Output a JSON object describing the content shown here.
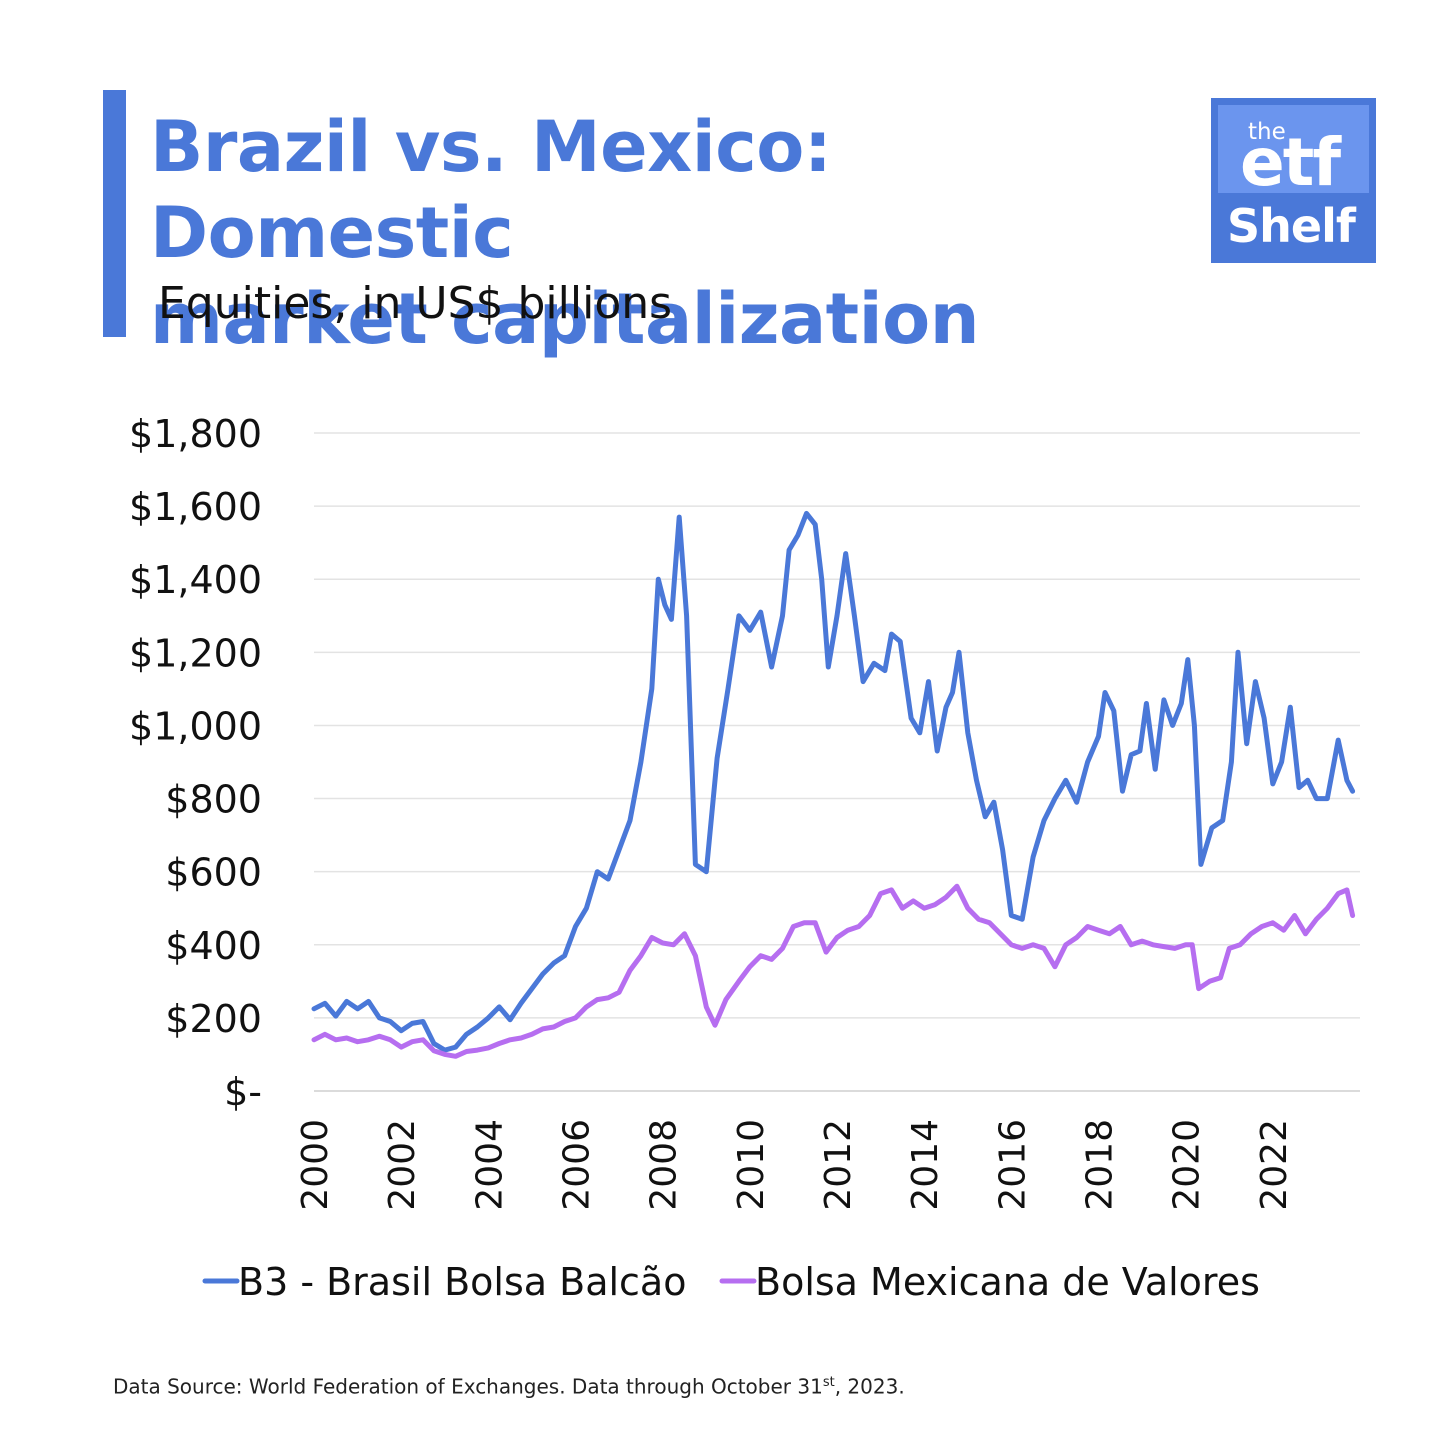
{
  "header": {
    "title_line1": "Brazil vs. Mexico: Domestic",
    "title_line2": "market capitalization",
    "subtitle": "Equities, in US$ billions"
  },
  "logo": {
    "the": "the",
    "etf": "etf",
    "shelf": "Shelf"
  },
  "footer": {
    "source_text": "Data Source: World Federation of Exchanges. Data through October 31",
    "superscript": "st",
    "source_end": ", 2023."
  },
  "colors": {
    "brand": "#4a78d8",
    "brazil": "#4a78d8",
    "mexico": "#b66ef0",
    "grid": "#e3e3e3"
  },
  "chart_data": {
    "type": "line",
    "title": "Brazil vs. Mexico: Domestic market capitalization",
    "subtitle": "Equities, in US$ billions",
    "xlim": [
      2000,
      2024
    ],
    "ylim": [
      0,
      1800
    ],
    "y_ticks": [
      0,
      200,
      400,
      600,
      800,
      1000,
      1200,
      1400,
      1600,
      1800
    ],
    "y_tick_labels": [
      "$-",
      "$200",
      "$400",
      "$600",
      "$800",
      "$1,000",
      "$1,200",
      "$1,400",
      "$1,600",
      "$1,800"
    ],
    "x_ticks": [
      2000,
      2002,
      2004,
      2006,
      2008,
      2010,
      2012,
      2014,
      2016,
      2018,
      2020,
      2022
    ],
    "x_tick_labels": [
      "2000",
      "2002",
      "2004",
      "2006",
      "2008",
      "2010",
      "2012",
      "2014",
      "2016",
      "2018",
      "2020",
      "2022"
    ],
    "grid": true,
    "legend_position": "bottom",
    "series": [
      {
        "name": "B3 - Brasil Bolsa Balcão",
        "color": "#4a78d8",
        "points": [
          [
            2000.0,
            225
          ],
          [
            2000.25,
            240
          ],
          [
            2000.5,
            205
          ],
          [
            2000.75,
            245
          ],
          [
            2001.0,
            225
          ],
          [
            2001.25,
            245
          ],
          [
            2001.5,
            200
          ],
          [
            2001.75,
            190
          ],
          [
            2002.0,
            165
          ],
          [
            2002.25,
            185
          ],
          [
            2002.5,
            190
          ],
          [
            2002.75,
            130
          ],
          [
            2003.0,
            112
          ],
          [
            2003.25,
            120
          ],
          [
            2003.5,
            155
          ],
          [
            2003.75,
            175
          ],
          [
            2004.0,
            200
          ],
          [
            2004.25,
            230
          ],
          [
            2004.5,
            195
          ],
          [
            2004.75,
            240
          ],
          [
            2005.0,
            280
          ],
          [
            2005.25,
            320
          ],
          [
            2005.5,
            350
          ],
          [
            2005.75,
            370
          ],
          [
            2006.0,
            450
          ],
          [
            2006.25,
            500
          ],
          [
            2006.5,
            600
          ],
          [
            2006.75,
            580
          ],
          [
            2007.0,
            660
          ],
          [
            2007.25,
            740
          ],
          [
            2007.5,
            900
          ],
          [
            2007.75,
            1100
          ],
          [
            2007.9,
            1400
          ],
          [
            2008.05,
            1330
          ],
          [
            2008.2,
            1290
          ],
          [
            2008.38,
            1570
          ],
          [
            2008.55,
            1300
          ],
          [
            2008.75,
            620
          ],
          [
            2009.0,
            600
          ],
          [
            2009.25,
            910
          ],
          [
            2009.5,
            1100
          ],
          [
            2009.75,
            1300
          ],
          [
            2010.0,
            1260
          ],
          [
            2010.25,
            1310
          ],
          [
            2010.5,
            1160
          ],
          [
            2010.75,
            1300
          ],
          [
            2010.9,
            1480
          ],
          [
            2011.1,
            1520
          ],
          [
            2011.3,
            1580
          ],
          [
            2011.5,
            1550
          ],
          [
            2011.65,
            1400
          ],
          [
            2011.8,
            1160
          ],
          [
            2012.0,
            1300
          ],
          [
            2012.2,
            1470
          ],
          [
            2012.4,
            1300
          ],
          [
            2012.6,
            1120
          ],
          [
            2012.85,
            1170
          ],
          [
            2013.1,
            1150
          ],
          [
            2013.25,
            1250
          ],
          [
            2013.45,
            1230
          ],
          [
            2013.7,
            1020
          ],
          [
            2013.9,
            980
          ],
          [
            2014.1,
            1120
          ],
          [
            2014.3,
            930
          ],
          [
            2014.5,
            1050
          ],
          [
            2014.65,
            1090
          ],
          [
            2014.8,
            1200
          ],
          [
            2015.0,
            980
          ],
          [
            2015.2,
            850
          ],
          [
            2015.4,
            750
          ],
          [
            2015.6,
            790
          ],
          [
            2015.8,
            660
          ],
          [
            2016.0,
            480
          ],
          [
            2016.25,
            470
          ],
          [
            2016.5,
            640
          ],
          [
            2016.75,
            740
          ],
          [
            2017.0,
            800
          ],
          [
            2017.25,
            850
          ],
          [
            2017.5,
            790
          ],
          [
            2017.75,
            900
          ],
          [
            2018.0,
            970
          ],
          [
            2018.15,
            1090
          ],
          [
            2018.35,
            1040
          ],
          [
            2018.55,
            820
          ],
          [
            2018.75,
            920
          ],
          [
            2018.95,
            930
          ],
          [
            2019.1,
            1060
          ],
          [
            2019.3,
            880
          ],
          [
            2019.5,
            1070
          ],
          [
            2019.7,
            1000
          ],
          [
            2019.9,
            1060
          ],
          [
            2020.05,
            1180
          ],
          [
            2020.2,
            1000
          ],
          [
            2020.35,
            620
          ],
          [
            2020.6,
            720
          ],
          [
            2020.85,
            740
          ],
          [
            2021.05,
            900
          ],
          [
            2021.2,
            1200
          ],
          [
            2021.4,
            950
          ],
          [
            2021.6,
            1120
          ],
          [
            2021.8,
            1020
          ],
          [
            2022.0,
            840
          ],
          [
            2022.2,
            900
          ],
          [
            2022.4,
            1050
          ],
          [
            2022.6,
            830
          ],
          [
            2022.8,
            850
          ],
          [
            2023.0,
            800
          ],
          [
            2023.25,
            800
          ],
          [
            2023.5,
            960
          ],
          [
            2023.7,
            850
          ],
          [
            2023.83,
            820
          ]
        ]
      },
      {
        "name": "Bolsa Mexicana de Valores",
        "color": "#b66ef0",
        "points": [
          [
            2000.0,
            140
          ],
          [
            2000.25,
            155
          ],
          [
            2000.5,
            140
          ],
          [
            2000.75,
            145
          ],
          [
            2001.0,
            135
          ],
          [
            2001.25,
            140
          ],
          [
            2001.5,
            150
          ],
          [
            2001.75,
            140
          ],
          [
            2002.0,
            120
          ],
          [
            2002.25,
            135
          ],
          [
            2002.5,
            140
          ],
          [
            2002.75,
            110
          ],
          [
            2003.0,
            100
          ],
          [
            2003.25,
            95
          ],
          [
            2003.5,
            108
          ],
          [
            2003.75,
            112
          ],
          [
            2004.0,
            118
          ],
          [
            2004.25,
            130
          ],
          [
            2004.5,
            140
          ],
          [
            2004.75,
            145
          ],
          [
            2005.0,
            155
          ],
          [
            2005.25,
            170
          ],
          [
            2005.5,
            175
          ],
          [
            2005.75,
            190
          ],
          [
            2006.0,
            200
          ],
          [
            2006.25,
            230
          ],
          [
            2006.5,
            250
          ],
          [
            2006.75,
            255
          ],
          [
            2007.0,
            270
          ],
          [
            2007.25,
            330
          ],
          [
            2007.5,
            370
          ],
          [
            2007.75,
            420
          ],
          [
            2008.0,
            405
          ],
          [
            2008.25,
            400
          ],
          [
            2008.5,
            430
          ],
          [
            2008.75,
            370
          ],
          [
            2009.0,
            230
          ],
          [
            2009.2,
            180
          ],
          [
            2009.45,
            250
          ],
          [
            2009.75,
            300
          ],
          [
            2010.0,
            340
          ],
          [
            2010.25,
            370
          ],
          [
            2010.5,
            360
          ],
          [
            2010.75,
            390
          ],
          [
            2011.0,
            450
          ],
          [
            2011.25,
            460
          ],
          [
            2011.5,
            460
          ],
          [
            2011.75,
            380
          ],
          [
            2012.0,
            420
          ],
          [
            2012.25,
            440
          ],
          [
            2012.5,
            450
          ],
          [
            2012.75,
            480
          ],
          [
            2013.0,
            540
          ],
          [
            2013.25,
            550
          ],
          [
            2013.5,
            500
          ],
          [
            2013.75,
            520
          ],
          [
            2014.0,
            500
          ],
          [
            2014.25,
            510
          ],
          [
            2014.5,
            530
          ],
          [
            2014.75,
            560
          ],
          [
            2015.0,
            500
          ],
          [
            2015.25,
            470
          ],
          [
            2015.5,
            460
          ],
          [
            2015.75,
            430
          ],
          [
            2016.0,
            400
          ],
          [
            2016.25,
            390
          ],
          [
            2016.5,
            400
          ],
          [
            2016.75,
            390
          ],
          [
            2017.0,
            340
          ],
          [
            2017.25,
            400
          ],
          [
            2017.5,
            420
          ],
          [
            2017.75,
            450
          ],
          [
            2018.0,
            440
          ],
          [
            2018.25,
            430
          ],
          [
            2018.5,
            450
          ],
          [
            2018.75,
            400
          ],
          [
            2019.0,
            410
          ],
          [
            2019.25,
            400
          ],
          [
            2019.5,
            395
          ],
          [
            2019.75,
            390
          ],
          [
            2020.0,
            400
          ],
          [
            2020.15,
            400
          ],
          [
            2020.3,
            280
          ],
          [
            2020.55,
            300
          ],
          [
            2020.8,
            310
          ],
          [
            2021.0,
            390
          ],
          [
            2021.25,
            400
          ],
          [
            2021.5,
            430
          ],
          [
            2021.75,
            450
          ],
          [
            2022.0,
            460
          ],
          [
            2022.25,
            440
          ],
          [
            2022.5,
            480
          ],
          [
            2022.75,
            430
          ],
          [
            2023.0,
            470
          ],
          [
            2023.25,
            500
          ],
          [
            2023.5,
            540
          ],
          [
            2023.7,
            550
          ],
          [
            2023.83,
            480
          ]
        ]
      }
    ]
  }
}
